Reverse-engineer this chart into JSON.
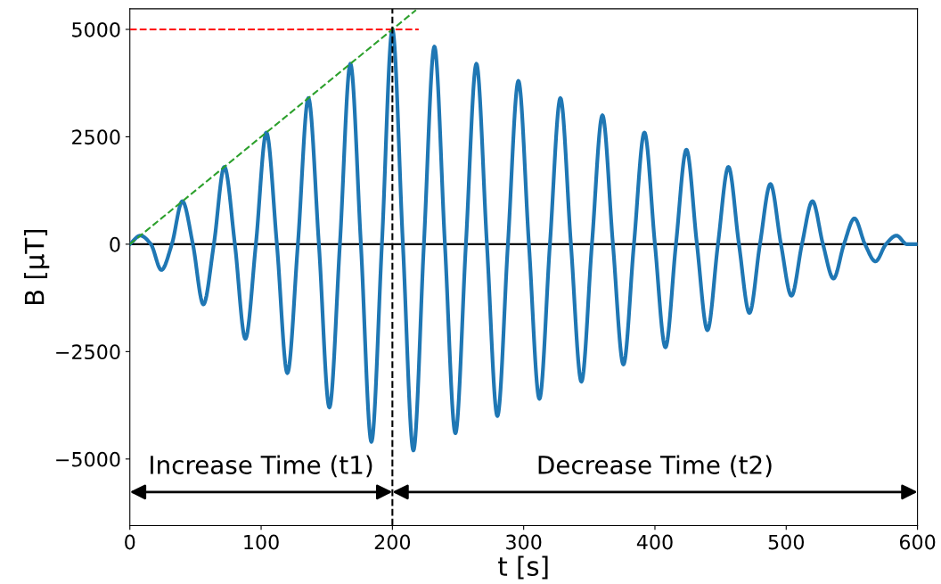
{
  "chart_data": {
    "type": "line",
    "xlabel": "t [s]",
    "ylabel": "B [µT]",
    "xlim": [
      0,
      600
    ],
    "ylim": [
      -6550,
      5480
    ],
    "xticks": [
      0,
      100,
      200,
      300,
      400,
      500,
      600
    ],
    "yticks": [
      -5000,
      -2500,
      0,
      2500,
      5000
    ],
    "grid": false,
    "legend": false,
    "marker": "none",
    "series": [
      {
        "color": "#1f77b4",
        "line_style": "solid",
        "x": [
          0,
          8,
          16,
          24,
          32,
          40,
          48,
          56,
          64,
          72,
          80,
          88,
          96,
          104,
          112,
          120,
          128,
          136,
          144,
          152,
          160,
          168,
          176,
          184,
          192,
          200,
          208,
          216,
          224,
          232,
          240,
          248,
          256,
          264,
          272,
          280,
          288,
          296,
          304,
          312,
          320,
          328,
          336,
          344,
          352,
          360,
          368,
          376,
          384,
          392,
          400,
          408,
          416,
          424,
          432,
          440,
          448,
          456,
          464,
          472,
          480,
          488,
          496,
          504,
          512,
          520,
          528,
          536,
          544,
          552,
          560,
          568,
          576,
          584,
          592,
          600
        ],
        "values": [
          0,
          200,
          0,
          -600,
          0,
          1000,
          0,
          -1400,
          0,
          1800,
          0,
          -2200,
          0,
          2600,
          0,
          -3000,
          0,
          3400,
          0,
          -3800,
          0,
          4200,
          0,
          -4600,
          0,
          5000,
          0,
          -4800,
          0,
          4600,
          0,
          -4400,
          0,
          4200,
          0,
          -4000,
          0,
          3800,
          0,
          -3600,
          0,
          3400,
          0,
          -3200,
          0,
          3000,
          0,
          -2800,
          0,
          2600,
          0,
          -2400,
          0,
          2200,
          0,
          -2000,
          0,
          1800,
          0,
          -1600,
          0,
          1400,
          0,
          -1200,
          0,
          1000,
          0,
          -800,
          0,
          600,
          0,
          -400,
          0,
          200,
          0,
          0
        ]
      },
      {
        "color": "#ff0000",
        "line_style": "dashed",
        "x": [
          0,
          220
        ],
        "values": [
          5000,
          5000
        ]
      },
      {
        "color": "#2ca02c",
        "line_style": "dashed",
        "x": [
          0,
          218
        ],
        "values": [
          0,
          5450
        ]
      }
    ],
    "ref_lines": [
      {
        "axis": "y",
        "value": 0,
        "color": "#000000",
        "line_style": "solid"
      },
      {
        "axis": "x",
        "value": 200,
        "color": "#000000",
        "line_style": "dashed"
      }
    ],
    "annotations": [
      "Increase Time (t1)",
      "Decrease Time (t2)"
    ]
  }
}
